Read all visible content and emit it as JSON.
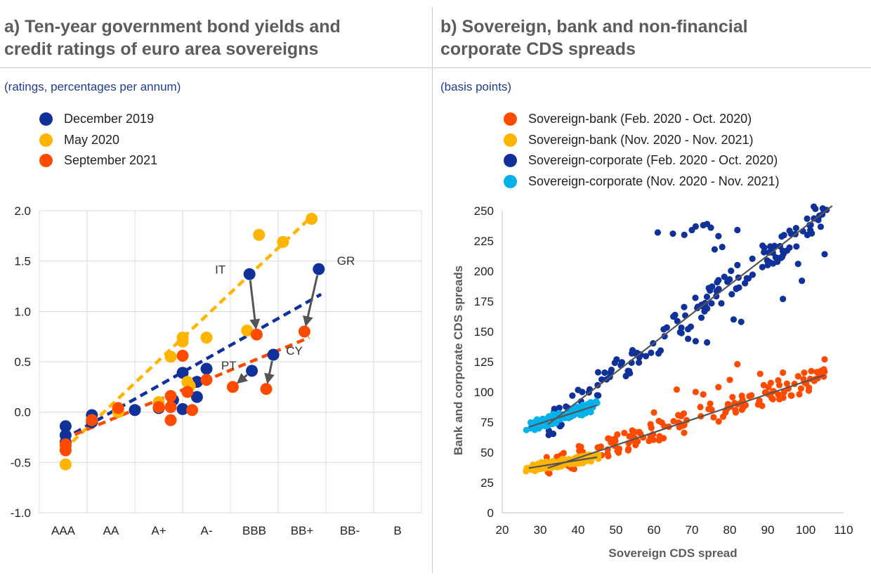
{
  "panel_a": {
    "title_line1": "a) Ten-year government bond yields and",
    "title_line2": "credit ratings of euro area sovereigns",
    "subtitle": "(ratings, percentages per annum)"
  },
  "panel_b": {
    "title_line1": "b) Sovereign, bank and non-financial",
    "title_line2": "corporate CDS spreads",
    "subtitle": "(basis points)"
  },
  "chart_data": [
    {
      "type": "scatter",
      "title": "a) Ten-year government bond yields and credit ratings of euro area sovereigns",
      "subtitle": "(ratings, percentages per annum)",
      "x_categories": [
        "AAA",
        "AA",
        "A+",
        "A-",
        "BBB",
        "BB+",
        "BB-",
        "B"
      ],
      "ylim": [
        -1.0,
        2.0
      ],
      "yticks": [
        "2.0",
        "1.5",
        "1.0",
        "0.5",
        "0.0",
        "-0.5",
        "-1.0"
      ],
      "grid": true,
      "legend_position": "top-left",
      "series": [
        {
          "name": "December 2019",
          "color": "#10309a",
          "points": [
            [
              0.05,
              -0.14
            ],
            [
              0.05,
              -0.23
            ],
            [
              0.05,
              -0.3
            ],
            [
              0.05,
              -0.34
            ],
            [
              0.6,
              -0.03
            ],
            [
              0.6,
              -0.1
            ],
            [
              1.15,
              0.03
            ],
            [
              1.15,
              0.01
            ],
            [
              1.5,
              0.02
            ],
            [
              2.0,
              0.04
            ],
            [
              2.3,
              0.12
            ],
            [
              2.5,
              0.39
            ],
            [
              2.5,
              0.03
            ],
            [
              2.8,
              0.3
            ],
            [
              2.8,
              0.15
            ],
            [
              3.0,
              0.43
            ],
            [
              3.9,
              1.37
            ],
            [
              3.95,
              0.41
            ],
            [
              4.4,
              0.57
            ],
            [
              5.35,
              1.42
            ]
          ],
          "trend": [
            [
              0.0,
              -0.27
            ],
            [
              5.4,
              1.17
            ]
          ]
        },
        {
          "name": "May 2020",
          "color": "#ffb400",
          "points": [
            [
              0.05,
              -0.52
            ],
            [
              0.05,
              -0.35
            ],
            [
              0.6,
              -0.08
            ],
            [
              1.15,
              0.02
            ],
            [
              1.15,
              0.0
            ],
            [
              2.0,
              0.1
            ],
            [
              2.25,
              0.55
            ],
            [
              2.5,
              0.74
            ],
            [
              2.5,
              0.7
            ],
            [
              2.6,
              0.3
            ],
            [
              2.65,
              0.26
            ],
            [
              3.0,
              0.74
            ],
            [
              3.85,
              0.81
            ],
            [
              4.1,
              1.76
            ],
            [
              4.6,
              1.69
            ],
            [
              5.2,
              1.92
            ]
          ],
          "trend": [
            [
              0.0,
              -0.38
            ],
            [
              5.15,
              1.92
            ]
          ]
        },
        {
          "name": "September 2021",
          "color": "#ff4b00",
          "points": [
            [
              0.05,
              -0.32
            ],
            [
              0.05,
              -0.38
            ],
            [
              0.6,
              -0.08
            ],
            [
              1.15,
              0.04
            ],
            [
              2.0,
              0.05
            ],
            [
              2.25,
              -0.08
            ],
            [
              2.25,
              0.05
            ],
            [
              2.25,
              0.16
            ],
            [
              2.5,
              0.56
            ],
            [
              2.6,
              0.2
            ],
            [
              2.7,
              0.02
            ],
            [
              3.0,
              0.32
            ],
            [
              3.55,
              0.25
            ],
            [
              4.05,
              0.77
            ],
            [
              4.25,
              0.23
            ],
            [
              5.05,
              0.8
            ]
          ],
          "trend": [
            [
              0.0,
              -0.27
            ],
            [
              5.15,
              0.74
            ]
          ]
        }
      ],
      "annotations": [
        {
          "label": "IT",
          "from": [
            3.9,
            1.37
          ],
          "to": [
            4.05,
            0.77
          ]
        },
        {
          "label": "PT",
          "from": [
            3.95,
            0.41
          ],
          "to": [
            3.55,
            0.25
          ]
        },
        {
          "label": "CY",
          "from": [
            4.4,
            0.57
          ],
          "to": [
            4.25,
            0.23
          ]
        },
        {
          "label": "GR",
          "from": [
            5.35,
            1.42
          ],
          "to": [
            5.05,
            0.8
          ]
        }
      ]
    },
    {
      "type": "scatter",
      "title": "b) Sovereign, bank and non-financial corporate CDS spreads",
      "subtitle": "(basis points)",
      "xlabel": "Sovereign CDS spread",
      "ylabel": "Bank and corporate CDS spreads",
      "xlim": [
        20,
        110
      ],
      "ylim": [
        0,
        250
      ],
      "xticks": [
        "20",
        "30",
        "40",
        "50",
        "60",
        "70",
        "80",
        "90",
        "100",
        "110"
      ],
      "yticks": [
        "250",
        "225",
        "200",
        "175",
        "150",
        "125",
        "100",
        "75",
        "50",
        "25",
        "0"
      ],
      "grid": false,
      "legend_position": "top",
      "series": [
        {
          "name": "Sovereign-bank (Feb. 2020 - Oct. 2020)",
          "color": "#ff4b00",
          "fit": [
            [
              32,
              37
            ],
            [
              105,
              114
            ]
          ]
        },
        {
          "name": "Sovereign-bank (Nov. 2020 - Nov. 2021)",
          "color": "#ffb400",
          "fit": [
            [
              27,
              37
            ],
            [
              45,
              46
            ]
          ]
        },
        {
          "name": "Sovereign-corporate (Feb. 2020 - Oct. 2020)",
          "color": "#10309a",
          "fit": [
            [
              32,
              73
            ],
            [
              107,
              254
            ]
          ]
        },
        {
          "name": "Sovereign-corporate (Nov. 2020 - Nov. 2021)",
          "color": "#00b1ea",
          "fit": [
            [
              27,
              71
            ],
            [
              45,
              89
            ]
          ]
        }
      ]
    }
  ]
}
